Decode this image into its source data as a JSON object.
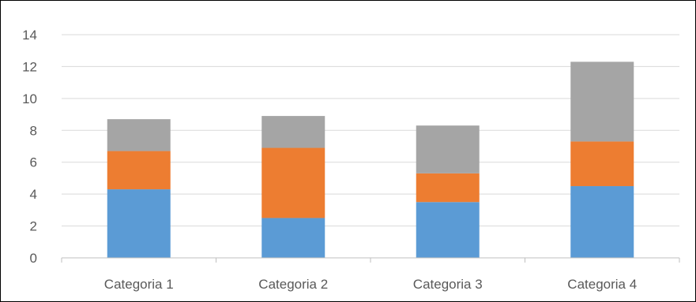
{
  "chart_data": {
    "type": "bar",
    "stacked": true,
    "categories": [
      "Categoria 1",
      "Categoria 2",
      "Categoria 3",
      "Categoria 4"
    ],
    "series": [
      {
        "color": "#5b9bd5",
        "values": [
          4.3,
          2.5,
          3.5,
          4.5
        ]
      },
      {
        "color": "#ed7d31",
        "values": [
          2.4,
          4.4,
          1.8,
          2.8
        ]
      },
      {
        "color": "#a5a5a5",
        "values": [
          2.0,
          2.0,
          3.0,
          5.0
        ]
      }
    ],
    "ylim": [
      0,
      14
    ],
    "yticks": [
      "0",
      "2",
      "4",
      "6",
      "8",
      "10",
      "12",
      "14"
    ],
    "grid": true,
    "gridColor": "#d9d9d9",
    "axisColor": "#bfbfbf",
    "title": "",
    "xlabel": "",
    "ylabel": "",
    "legend": "none"
  }
}
